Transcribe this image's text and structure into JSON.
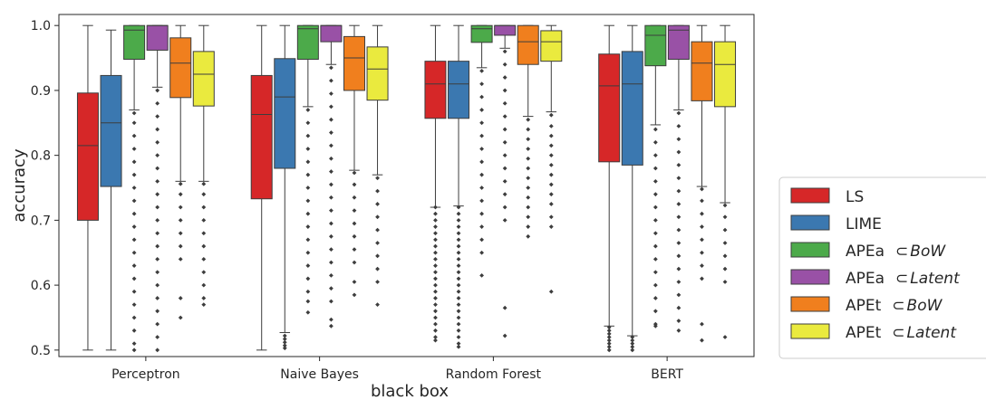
{
  "chart_data": {
    "type": "boxplot",
    "xlabel": "black box",
    "ylabel": "accuracy",
    "ylim": [
      0.49,
      1.017
    ],
    "yticks": [
      "0.5",
      "0.6",
      "0.7",
      "0.8",
      "0.9",
      "1.0"
    ],
    "grid": false,
    "legend_position": "right",
    "categories": [
      "Perceptron",
      "Naive Bayes",
      "Random Forest",
      "BERT"
    ],
    "legend": [
      {
        "base": "LS",
        "subscript": ""
      },
      {
        "base": "LIME",
        "subscript": ""
      },
      {
        "base": "APEa",
        "subscript": "BoW"
      },
      {
        "base": "APEa",
        "subscript": "Latent"
      },
      {
        "base": "APEt",
        "subscript": "BoW"
      },
      {
        "base": "APEt",
        "subscript": "Latent"
      }
    ],
    "subset_symbol": "⊂",
    "colors": [
      "#d62728",
      "#3b78b0",
      "#4caa4a",
      "#9951a6",
      "#f07f1e",
      "#eaea3e"
    ],
    "series": [
      {
        "name": "LS",
        "boxes": [
          {
            "category": "Perceptron",
            "whislo": 0.5,
            "q1": 0.7,
            "med": 0.815,
            "q3": 0.896,
            "whishi": 1.0,
            "fliers": []
          },
          {
            "category": "Naive Bayes",
            "whislo": 0.5,
            "q1": 0.733,
            "med": 0.863,
            "q3": 0.923,
            "whishi": 1.0,
            "fliers": []
          },
          {
            "category": "Random Forest",
            "whislo": 0.72,
            "q1": 0.857,
            "med": 0.91,
            "q3": 0.945,
            "whishi": 1.0,
            "fliers": [
              0.72,
              0.71,
              0.7,
              0.69,
              0.68,
              0.67,
              0.66,
              0.65,
              0.64,
              0.63,
              0.62,
              0.61,
              0.6,
              0.59,
              0.58,
              0.57,
              0.56,
              0.55,
              0.54,
              0.53,
              0.52,
              0.515
            ]
          },
          {
            "category": "BERT",
            "whislo": 0.537,
            "q1": 0.79,
            "med": 0.907,
            "q3": 0.956,
            "whishi": 1.0,
            "fliers": [
              0.535,
              0.53,
              0.525,
              0.52,
              0.515,
              0.51,
              0.505,
              0.5
            ]
          }
        ]
      },
      {
        "name": "LIME",
        "boxes": [
          {
            "category": "Perceptron",
            "whislo": 0.5,
            "q1": 0.752,
            "med": 0.85,
            "q3": 0.923,
            "whishi": 0.993,
            "fliers": []
          },
          {
            "category": "Naive Bayes",
            "whislo": 0.527,
            "q1": 0.78,
            "med": 0.89,
            "q3": 0.949,
            "whishi": 1.0,
            "fliers": [
              0.522,
              0.517,
              0.512,
              0.507,
              0.503
            ]
          },
          {
            "category": "Random Forest",
            "whislo": 0.722,
            "q1": 0.857,
            "med": 0.91,
            "q3": 0.945,
            "whishi": 1.0,
            "fliers": [
              0.72,
              0.71,
              0.7,
              0.69,
              0.68,
              0.67,
              0.66,
              0.65,
              0.64,
              0.63,
              0.62,
              0.61,
              0.6,
              0.59,
              0.58,
              0.57,
              0.56,
              0.55,
              0.54,
              0.53,
              0.52,
              0.51,
              0.505
            ]
          },
          {
            "category": "BERT",
            "whislo": 0.522,
            "q1": 0.785,
            "med": 0.91,
            "q3": 0.96,
            "whishi": 1.0,
            "fliers": [
              0.52,
              0.515,
              0.51,
              0.505,
              0.5
            ]
          }
        ]
      },
      {
        "name": "APEa ⊂ BoW",
        "boxes": [
          {
            "category": "Perceptron",
            "whislo": 0.87,
            "q1": 0.948,
            "med": 0.993,
            "q3": 1.0,
            "whishi": 1.0,
            "fliers": [
              0.865,
              0.85,
              0.83,
              0.81,
              0.79,
              0.77,
              0.75,
              0.73,
              0.71,
              0.69,
              0.67,
              0.65,
              0.63,
              0.61,
              0.59,
              0.57,
              0.55,
              0.53,
              0.51,
              0.5
            ]
          },
          {
            "category": "Naive Bayes",
            "whislo": 0.875,
            "q1": 0.948,
            "med": 0.995,
            "q3": 1.0,
            "whishi": 1.0,
            "fliers": [
              0.87,
              0.85,
              0.83,
              0.81,
              0.79,
              0.77,
              0.75,
              0.73,
              0.71,
              0.69,
              0.67,
              0.65,
              0.63,
              0.61,
              0.59,
              0.575,
              0.558
            ]
          },
          {
            "category": "Random Forest",
            "whislo": 0.935,
            "q1": 0.974,
            "med": 0.995,
            "q3": 1.0,
            "whishi": 1.0,
            "fliers": [
              0.93,
              0.91,
              0.89,
              0.87,
              0.85,
              0.83,
              0.81,
              0.79,
              0.77,
              0.75,
              0.73,
              0.71,
              0.69,
              0.67,
              0.65,
              0.615
            ]
          },
          {
            "category": "BERT",
            "whislo": 0.847,
            "q1": 0.938,
            "med": 0.985,
            "q3": 1.0,
            "whishi": 1.0,
            "fliers": [
              0.84,
              0.82,
              0.8,
              0.78,
              0.76,
              0.74,
              0.72,
              0.7,
              0.68,
              0.66,
              0.64,
              0.62,
              0.6,
              0.58,
              0.56,
              0.54,
              0.537
            ]
          }
        ]
      },
      {
        "name": "APEa ⊂ Latent",
        "boxes": [
          {
            "category": "Perceptron",
            "whislo": 0.905,
            "q1": 0.962,
            "med": 1.0,
            "q3": 1.0,
            "whishi": 1.0,
            "fliers": [
              0.9,
              0.88,
              0.86,
              0.84,
              0.82,
              0.8,
              0.78,
              0.76,
              0.74,
              0.72,
              0.7,
              0.68,
              0.66,
              0.64,
              0.62,
              0.6,
              0.58,
              0.56,
              0.54,
              0.52,
              0.5
            ]
          },
          {
            "category": "Naive Bayes",
            "whislo": 0.94,
            "q1": 0.975,
            "med": 1.0,
            "q3": 1.0,
            "whishi": 1.0,
            "fliers": [
              0.935,
              0.915,
              0.895,
              0.875,
              0.855,
              0.835,
              0.815,
              0.795,
              0.775,
              0.755,
              0.735,
              0.715,
              0.695,
              0.675,
              0.655,
              0.635,
              0.615,
              0.595,
              0.575,
              0.547,
              0.537
            ]
          },
          {
            "category": "Random Forest",
            "whislo": 0.965,
            "q1": 0.985,
            "med": 1.0,
            "q3": 1.0,
            "whishi": 1.0,
            "fliers": [
              0.96,
              0.94,
              0.92,
              0.9,
              0.88,
              0.86,
              0.84,
              0.82,
              0.8,
              0.78,
              0.76,
              0.74,
              0.72,
              0.7,
              0.565,
              0.522
            ]
          },
          {
            "category": "BERT",
            "whislo": 0.87,
            "q1": 0.948,
            "med": 0.993,
            "q3": 1.0,
            "whishi": 1.0,
            "fliers": [
              0.865,
              0.845,
              0.825,
              0.805,
              0.785,
              0.765,
              0.745,
              0.725,
              0.705,
              0.685,
              0.665,
              0.645,
              0.625,
              0.605,
              0.585,
              0.565,
              0.545,
              0.53
            ]
          }
        ]
      },
      {
        "name": "APEt ⊂ BoW",
        "boxes": [
          {
            "category": "Perceptron",
            "whislo": 0.76,
            "q1": 0.889,
            "med": 0.942,
            "q3": 0.981,
            "whishi": 1.0,
            "fliers": [
              0.756,
              0.74,
              0.72,
              0.7,
              0.68,
              0.66,
              0.64,
              0.58,
              0.55
            ]
          },
          {
            "category": "Naive Bayes",
            "whislo": 0.777,
            "q1": 0.9,
            "med": 0.95,
            "q3": 0.983,
            "whishi": 1.0,
            "fliers": [
              0.773,
              0.755,
              0.735,
              0.715,
              0.695,
              0.675,
              0.655,
              0.635,
              0.605,
              0.585
            ]
          },
          {
            "category": "Random Forest",
            "whislo": 0.86,
            "q1": 0.94,
            "med": 0.975,
            "q3": 1.0,
            "whishi": 1.0,
            "fliers": [
              0.855,
              0.84,
              0.825,
              0.81,
              0.795,
              0.78,
              0.765,
              0.75,
              0.735,
              0.72,
              0.705,
              0.69,
              0.675
            ]
          },
          {
            "category": "BERT",
            "whislo": 0.752,
            "q1": 0.884,
            "med": 0.942,
            "q3": 0.975,
            "whishi": 1.0,
            "fliers": [
              0.748,
              0.73,
              0.71,
              0.69,
              0.67,
              0.65,
              0.63,
              0.61,
              0.54,
              0.515
            ]
          }
        ]
      },
      {
        "name": "APEt ⊂ Latent",
        "boxes": [
          {
            "category": "Perceptron",
            "whislo": 0.76,
            "q1": 0.876,
            "med": 0.925,
            "q3": 0.96,
            "whishi": 1.0,
            "fliers": [
              0.756,
              0.74,
              0.72,
              0.7,
              0.68,
              0.66,
              0.64,
              0.62,
              0.6,
              0.58,
              0.57
            ]
          },
          {
            "category": "Naive Bayes",
            "whislo": 0.77,
            "q1": 0.885,
            "med": 0.933,
            "q3": 0.967,
            "whishi": 1.0,
            "fliers": [
              0.765,
              0.745,
              0.725,
              0.705,
              0.685,
              0.665,
              0.645,
              0.625,
              0.605,
              0.57
            ]
          },
          {
            "category": "Random Forest",
            "whislo": 0.867,
            "q1": 0.945,
            "med": 0.975,
            "q3": 0.992,
            "whishi": 1.0,
            "fliers": [
              0.862,
              0.845,
              0.83,
              0.815,
              0.8,
              0.785,
              0.77,
              0.755,
              0.74,
              0.725,
              0.705,
              0.69,
              0.59
            ]
          },
          {
            "category": "BERT",
            "whislo": 0.727,
            "q1": 0.875,
            "med": 0.94,
            "q3": 0.975,
            "whishi": 1.0,
            "fliers": [
              0.723,
              0.705,
              0.685,
              0.665,
              0.645,
              0.625,
              0.605,
              0.52
            ]
          }
        ]
      }
    ]
  }
}
